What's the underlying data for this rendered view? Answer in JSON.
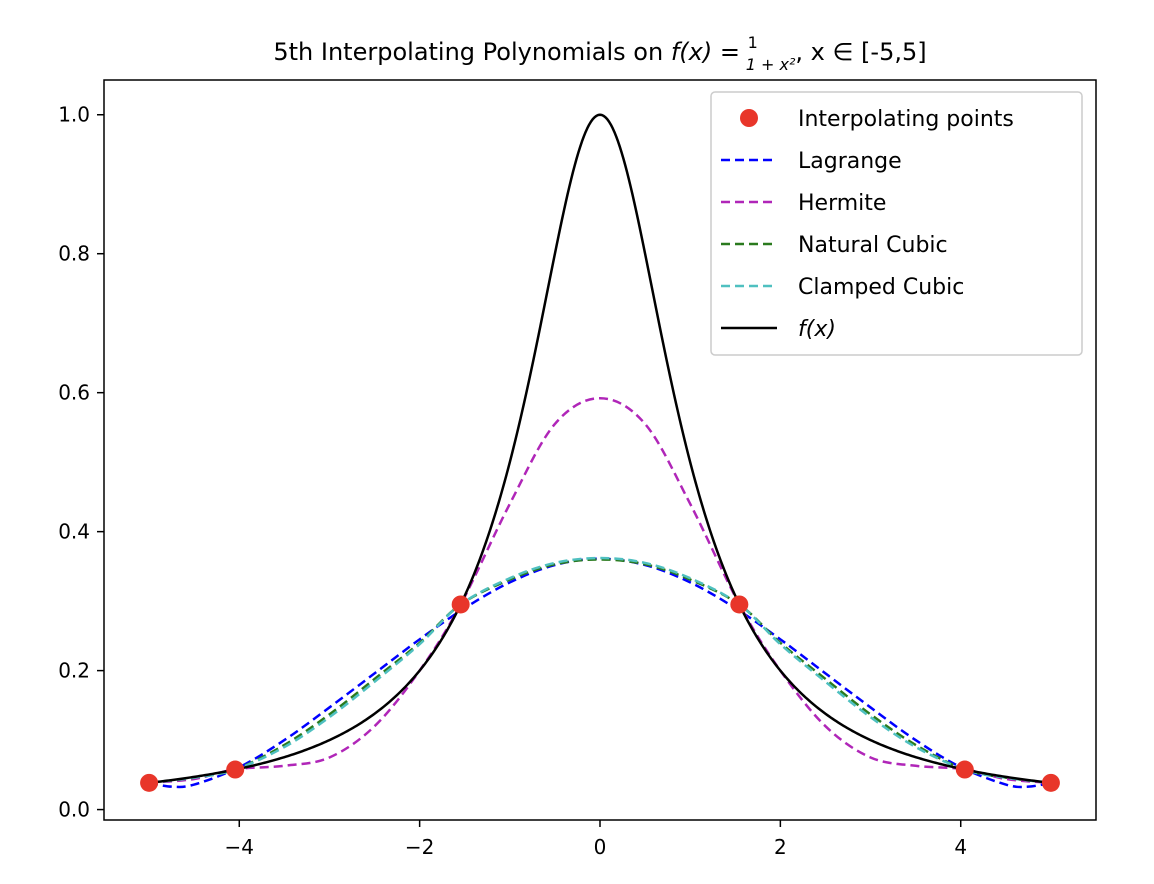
{
  "chart_data": {
    "type": "line",
    "title": {
      "prefix": "5th Interpolating Polynomials on ",
      "f_of_x": "f(x)",
      "eq": " = ",
      "frac_num": "1",
      "frac_den": "1 + x²",
      "suffix": ", x ∈ [-5,5]"
    },
    "xlabel": "",
    "ylabel": "",
    "xlim": [
      -5.5,
      5.5
    ],
    "ylim": [
      -0.015,
      1.05
    ],
    "xticks": [
      -4,
      -2,
      0,
      2,
      4
    ],
    "xtick_labels": [
      "−4",
      "−2",
      "0",
      "2",
      "4"
    ],
    "yticks": [
      0.0,
      0.2,
      0.4,
      0.6,
      0.8,
      1.0
    ],
    "ytick_labels": [
      "0.0",
      "0.2",
      "0.4",
      "0.6",
      "0.8",
      "1.0"
    ],
    "grid": false,
    "legend_position": "top-right",
    "colors": {
      "points": "#e8362a",
      "lagrange": "#0000ff",
      "hermite": "#b026b8",
      "natural": "#2a7a1e",
      "clamped": "#4fc0c0",
      "fx": "#000000"
    },
    "interpolating_points": {
      "name": "Interpolating points",
      "x": [
        -5.0,
        -4.045,
        -1.545,
        1.545,
        4.045,
        5.0
      ],
      "y": [
        0.0385,
        0.0576,
        0.2952,
        0.2952,
        0.0576,
        0.0385
      ]
    },
    "series": [
      {
        "key": "lagrange",
        "name": "Lagrange",
        "style": "dashed",
        "x": [
          -5.0,
          -4.75,
          -4.5,
          -4.0,
          -3.5,
          -3.0,
          -2.5,
          -2.0,
          -1.5,
          -1.0,
          -0.5,
          0.0,
          0.5,
          1.0,
          1.5,
          2.0,
          2.5,
          3.0,
          3.5,
          4.0,
          4.5,
          4.75,
          5.0
        ],
        "y": [
          0.0385,
          0.033,
          0.036,
          0.061,
          0.1,
          0.147,
          0.196,
          0.245,
          0.29,
          0.327,
          0.352,
          0.361,
          0.352,
          0.327,
          0.29,
          0.245,
          0.196,
          0.147,
          0.1,
          0.061,
          0.036,
          0.033,
          0.0385
        ]
      },
      {
        "key": "hermite",
        "name": "Hermite",
        "style": "dashed",
        "x": [
          -5.0,
          -4.5,
          -4.045,
          -3.5,
          -3.0,
          -2.5,
          -2.0,
          -1.545,
          -1.0,
          -0.5,
          0.0,
          0.5,
          1.0,
          1.545,
          2.0,
          2.5,
          3.0,
          3.5,
          4.045,
          4.5,
          5.0
        ],
        "y": [
          0.0385,
          0.044,
          0.058,
          0.063,
          0.075,
          0.12,
          0.2,
          0.2952,
          0.44,
          0.555,
          0.592,
          0.555,
          0.44,
          0.2952,
          0.2,
          0.12,
          0.075,
          0.063,
          0.058,
          0.044,
          0.0385
        ]
      },
      {
        "key": "natural",
        "name": "Natural Cubic",
        "style": "dashed",
        "x": [
          -5.0,
          -4.5,
          -4.045,
          -3.5,
          -3.0,
          -2.5,
          -2.0,
          -1.545,
          -1.0,
          -0.5,
          0.0,
          0.5,
          1.0,
          1.545,
          2.0,
          2.5,
          3.0,
          3.5,
          4.045,
          4.5,
          5.0
        ],
        "y": [
          0.0385,
          0.046,
          0.0576,
          0.093,
          0.137,
          0.188,
          0.24,
          0.2952,
          0.331,
          0.353,
          0.36,
          0.353,
          0.331,
          0.2952,
          0.24,
          0.188,
          0.137,
          0.093,
          0.0576,
          0.046,
          0.0385
        ]
      },
      {
        "key": "clamped",
        "name": "Clamped Cubic",
        "style": "dashed",
        "x": [
          -5.0,
          -4.5,
          -4.045,
          -3.5,
          -3.0,
          -2.5,
          -2.0,
          -1.545,
          -1.0,
          -0.5,
          0.0,
          0.5,
          1.0,
          1.545,
          2.0,
          2.5,
          3.0,
          3.5,
          4.045,
          4.5,
          5.0
        ],
        "y": [
          0.0385,
          0.046,
          0.0576,
          0.09,
          0.133,
          0.184,
          0.238,
          0.2952,
          0.333,
          0.355,
          0.362,
          0.355,
          0.333,
          0.2952,
          0.238,
          0.184,
          0.133,
          0.09,
          0.0576,
          0.046,
          0.0385
        ]
      },
      {
        "key": "fx",
        "name": "f(x)",
        "style": "solid",
        "function": "1/(1+x^2)"
      }
    ]
  }
}
